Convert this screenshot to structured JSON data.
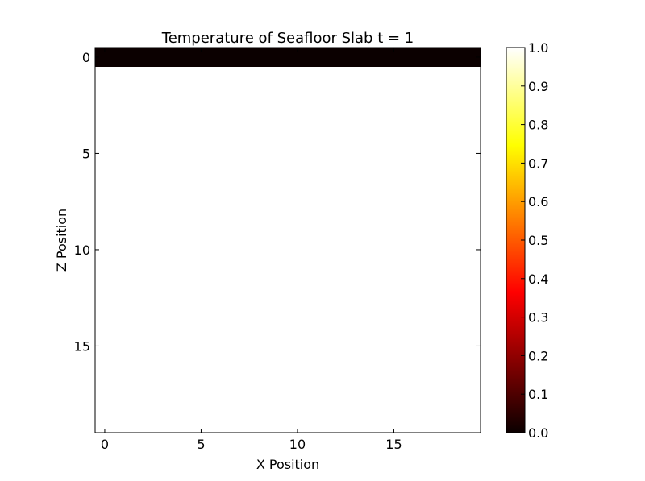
{
  "chart_data": {
    "type": "heatmap",
    "title": "Temperature of Seafloor Slab t = 1",
    "xlabel": "X Position",
    "ylabel": "Z Position",
    "colormap": "hot",
    "grid": false,
    "x_range": [
      -0.5,
      19.5
    ],
    "z_range": [
      19.5,
      -0.5
    ],
    "x_ticks": [
      0,
      5,
      10,
      15
    ],
    "z_ticks": [
      0,
      5,
      10,
      15
    ],
    "rows": 20,
    "cols": 20,
    "row_values": [
      0,
      1,
      1,
      1,
      1,
      1,
      1,
      1,
      1,
      1,
      1,
      1,
      1,
      1,
      1,
      1,
      1,
      1,
      1,
      1
    ],
    "colorbar": {
      "range": [
        0.0,
        1.0
      ],
      "ticks": [
        "0.0",
        "0.1",
        "0.2",
        "0.3",
        "0.4",
        "0.5",
        "0.6",
        "0.7",
        "0.8",
        "0.9",
        "1.0"
      ],
      "placement": "right"
    }
  }
}
